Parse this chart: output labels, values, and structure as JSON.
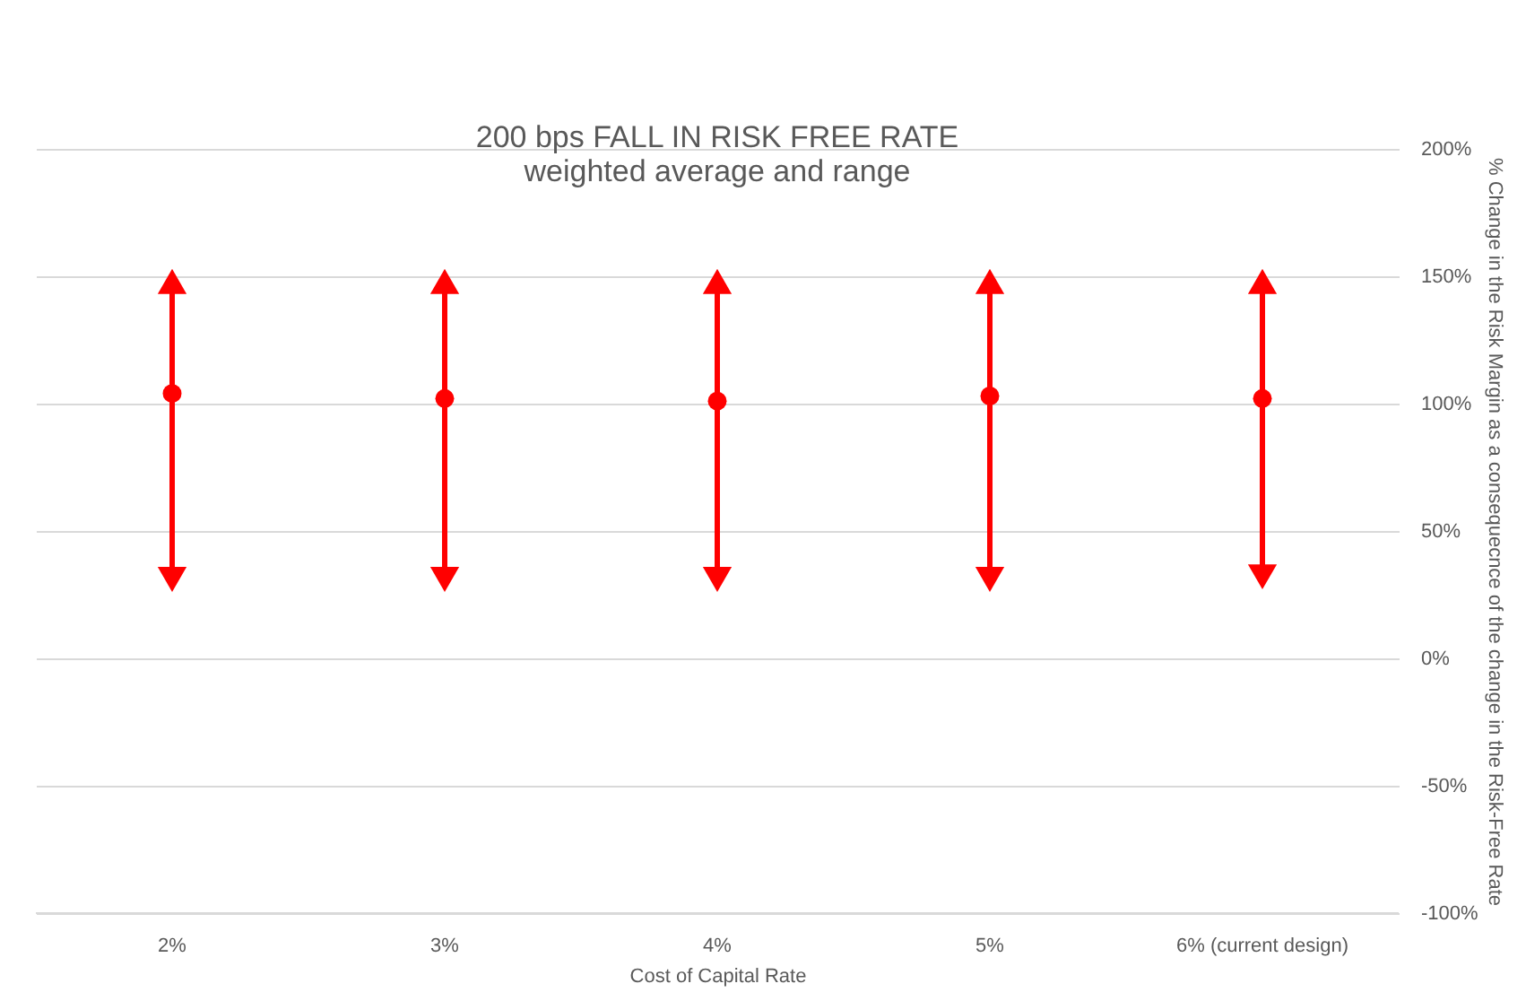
{
  "chart_data": {
    "type": "scatter",
    "title": [
      "200 bps FALL IN RISK FREE RATE",
      "weighted average and range"
    ],
    "xlabel": "Cost of Capital Rate",
    "ylabel": "% Change in the Risk Margin as a consequecnce of the change in the Risk-Free Rate",
    "categories": [
      "2%",
      "3%",
      "4%",
      "5%",
      "6% (current design)"
    ],
    "series": [
      {
        "color": "#ff0000",
        "values": [
          104,
          102,
          101,
          103,
          102
        ],
        "errors": [
          [
            31,
            148
          ],
          [
            31,
            148
          ],
          [
            31,
            148
          ],
          [
            31,
            148
          ],
          [
            32,
            148
          ]
        ]
      }
    ],
    "ylim": [
      -100,
      200
    ],
    "yticks": [
      {
        "value": -100,
        "label": "-100%"
      },
      {
        "value": -50,
        "label": "-50%"
      },
      {
        "value": 0,
        "label": "0%"
      },
      {
        "value": 50,
        "label": "50%"
      },
      {
        "value": 100,
        "label": "100%"
      },
      {
        "value": 150,
        "label": "150%"
      },
      {
        "value": 200,
        "label": "200%"
      }
    ],
    "grid": "y",
    "marker": "circle"
  }
}
